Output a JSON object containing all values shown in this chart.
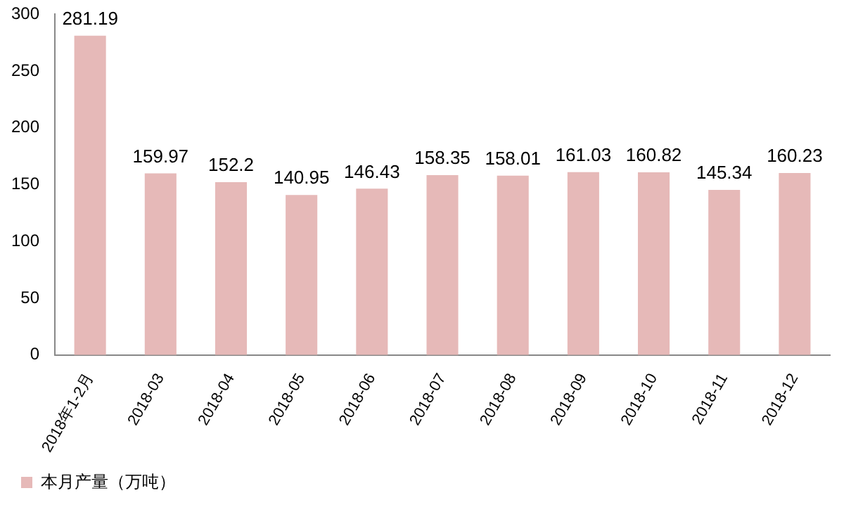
{
  "chart_data": {
    "type": "bar",
    "categories": [
      "2018年1-2月",
      "2018-03",
      "2018-04",
      "2018-05",
      "2018-06",
      "2018-07",
      "2018-08",
      "2018-09",
      "2018-10",
      "2018-11",
      "2018-12"
    ],
    "series": [
      {
        "name": "本月产量（万吨）",
        "color": "#e6b9b8",
        "values": [
          281.19,
          159.97,
          152.2,
          140.95,
          146.43,
          158.35,
          158.01,
          161.03,
          160.82,
          145.34,
          160.23
        ]
      }
    ],
    "ylim": [
      0,
      300
    ],
    "yticks": [
      0,
      50,
      100,
      150,
      200,
      250,
      300
    ],
    "grid": false,
    "legend": "bottom",
    "data_labels": true
  }
}
